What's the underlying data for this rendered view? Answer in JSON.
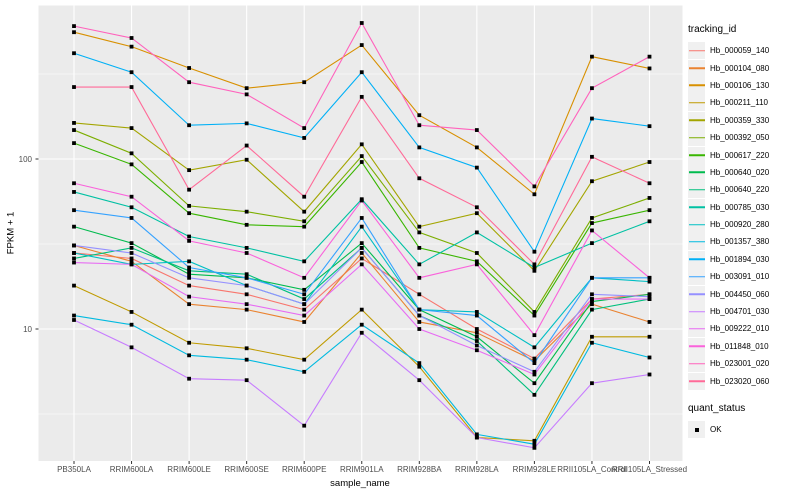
{
  "colors": {
    "page_bg": "#FFFFFF",
    "panel_bg": "#EBEBEB",
    "grid_major": "#FFFFFF",
    "grid_minor": "#FFFFFF",
    "tick_mark": "#333333",
    "tick_text": "#4D4D4D",
    "axis_title_text": "#000000",
    "legend_key_bg": "#F0F0F0",
    "point_color": "#000000"
  },
  "chart_data": {
    "type": "line",
    "title": "",
    "x_axis": {
      "label": "sample_name",
      "categories": [
        "PB350LA",
        "RRIM600LA",
        "RRIM600LE",
        "RRIM600SE",
        "RRIM600PE",
        "RRIM901LA",
        "RRIM928BA",
        "RRIM928LA",
        "RRIM928LE",
        "RRII105LA_Control",
        "RRII105LA_Stressed"
      ]
    },
    "y_axis": {
      "label": "FPKM + 1",
      "scale": "log10",
      "ticks": [
        100,
        10
      ],
      "minor_gridlines_at": [
        316.23,
        31.623,
        3.1623
      ],
      "range_approx": [
        1.7,
        790
      ],
      "grid": "on"
    },
    "legend": {
      "position": "right",
      "tracking_title": "tracking_id",
      "quant_title": "quant_status",
      "quant_entries": [
        {
          "label": "OK",
          "shape": "filled-square",
          "color": "#000000"
        }
      ]
    },
    "point_shape": "filled-square",
    "series": [
      {
        "tracking_id": "Hb_000059_140",
        "color": "#F8766D",
        "values": [
          28,
          26,
          18,
          16,
          13,
          26,
          16,
          10,
          6.7,
          15,
          16
        ]
      },
      {
        "tracking_id": "Hb_000104_080",
        "color": "#EA8331",
        "values": [
          31,
          25,
          14,
          13,
          11,
          28,
          11,
          9.5,
          6.5,
          14,
          11
        ]
      },
      {
        "tracking_id": "Hb_000106_130",
        "color": "#D89000",
        "values": [
          557,
          458,
          343,
          261,
          283,
          468,
          181,
          117,
          62,
          400,
          341
        ]
      },
      {
        "tracking_id": "Hb_000211_110",
        "color": "#C09B00",
        "values": [
          18,
          12.6,
          8.3,
          7.7,
          6.6,
          13,
          6,
          2.3,
          2.2,
          9,
          9
        ]
      },
      {
        "tracking_id": "Hb_000359_330",
        "color": "#A3A500",
        "values": [
          163,
          152,
          86,
          99,
          49,
          122,
          40,
          48,
          22,
          74,
          96
        ]
      },
      {
        "tracking_id": "Hb_000392_050",
        "color": "#7CAE00",
        "values": [
          148,
          108,
          53,
          49,
          43,
          104,
          37,
          28,
          12.6,
          45,
          59
        ]
      },
      {
        "tracking_id": "Hb_000617_220",
        "color": "#39B600",
        "values": [
          124,
          93,
          48,
          41,
          40,
          96,
          30,
          25,
          12,
          42,
          50
        ]
      },
      {
        "tracking_id": "Hb_000640_020",
        "color": "#00BB4E",
        "values": [
          40,
          32,
          21,
          20,
          17,
          32,
          13,
          9,
          4.8,
          14.5,
          16
        ]
      },
      {
        "tracking_id": "Hb_000640_220",
        "color": "#00BF7D",
        "values": [
          26,
          30,
          22,
          21,
          15,
          30,
          12,
          8.5,
          4.1,
          13,
          15
        ]
      },
      {
        "tracking_id": "Hb_000785_030",
        "color": "#00C1A3",
        "values": [
          64,
          52,
          35,
          30,
          25,
          58,
          24,
          37,
          23,
          32,
          43
        ]
      },
      {
        "tracking_id": "Hb_000920_280",
        "color": "#00BFC4",
        "values": [
          28,
          24,
          25,
          18,
          14,
          40,
          13,
          12.6,
          7.8,
          20,
          19
        ]
      },
      {
        "tracking_id": "Hb_001357_380",
        "color": "#00BAE0",
        "values": [
          12,
          10.6,
          7,
          6.6,
          5.6,
          10.6,
          6.3,
          2.4,
          2.1,
          8.3,
          6.8
        ]
      },
      {
        "tracking_id": "Hb_001894_030",
        "color": "#00B0F6",
        "values": [
          419,
          324,
          158,
          162,
          133,
          324,
          117,
          89,
          28.5,
          173,
          156
        ]
      },
      {
        "tracking_id": "Hb_003091_010",
        "color": "#35A2FF",
        "values": [
          50,
          45,
          23,
          20,
          16,
          45,
          13,
          12,
          6.3,
          20,
          20
        ]
      },
      {
        "tracking_id": "Hb_004450_060",
        "color": "#9590FF",
        "values": [
          31,
          28,
          20,
          18,
          14,
          30,
          12,
          8,
          5.6,
          16,
          15.5
        ]
      },
      {
        "tracking_id": "Hb_004701_030",
        "color": "#C77CFF",
        "values": [
          11.3,
          7.8,
          5.1,
          5,
          2.7,
          9.5,
          5,
          2.3,
          2,
          4.8,
          5.4
        ]
      },
      {
        "tracking_id": "Hb_009222_010",
        "color": "#E76BF3",
        "values": [
          24.6,
          24,
          15.5,
          14,
          12,
          24,
          10,
          7.5,
          5.4,
          15,
          15
        ]
      },
      {
        "tracking_id": "Hb_011848_010",
        "color": "#FA62DB",
        "values": [
          72,
          60,
          33,
          28,
          20,
          57,
          20,
          24,
          9.2,
          38,
          20
        ]
      },
      {
        "tracking_id": "Hb_023001_020",
        "color": "#FF62BC",
        "values": [
          605,
          515,
          283,
          240,
          152,
          631,
          158,
          148,
          69,
          261,
          400
        ]
      },
      {
        "tracking_id": "Hb_023020_060",
        "color": "#FF6A98",
        "values": [
          265,
          265,
          66,
          120,
          60,
          232,
          77,
          52,
          24,
          103,
          72
        ]
      }
    ]
  }
}
